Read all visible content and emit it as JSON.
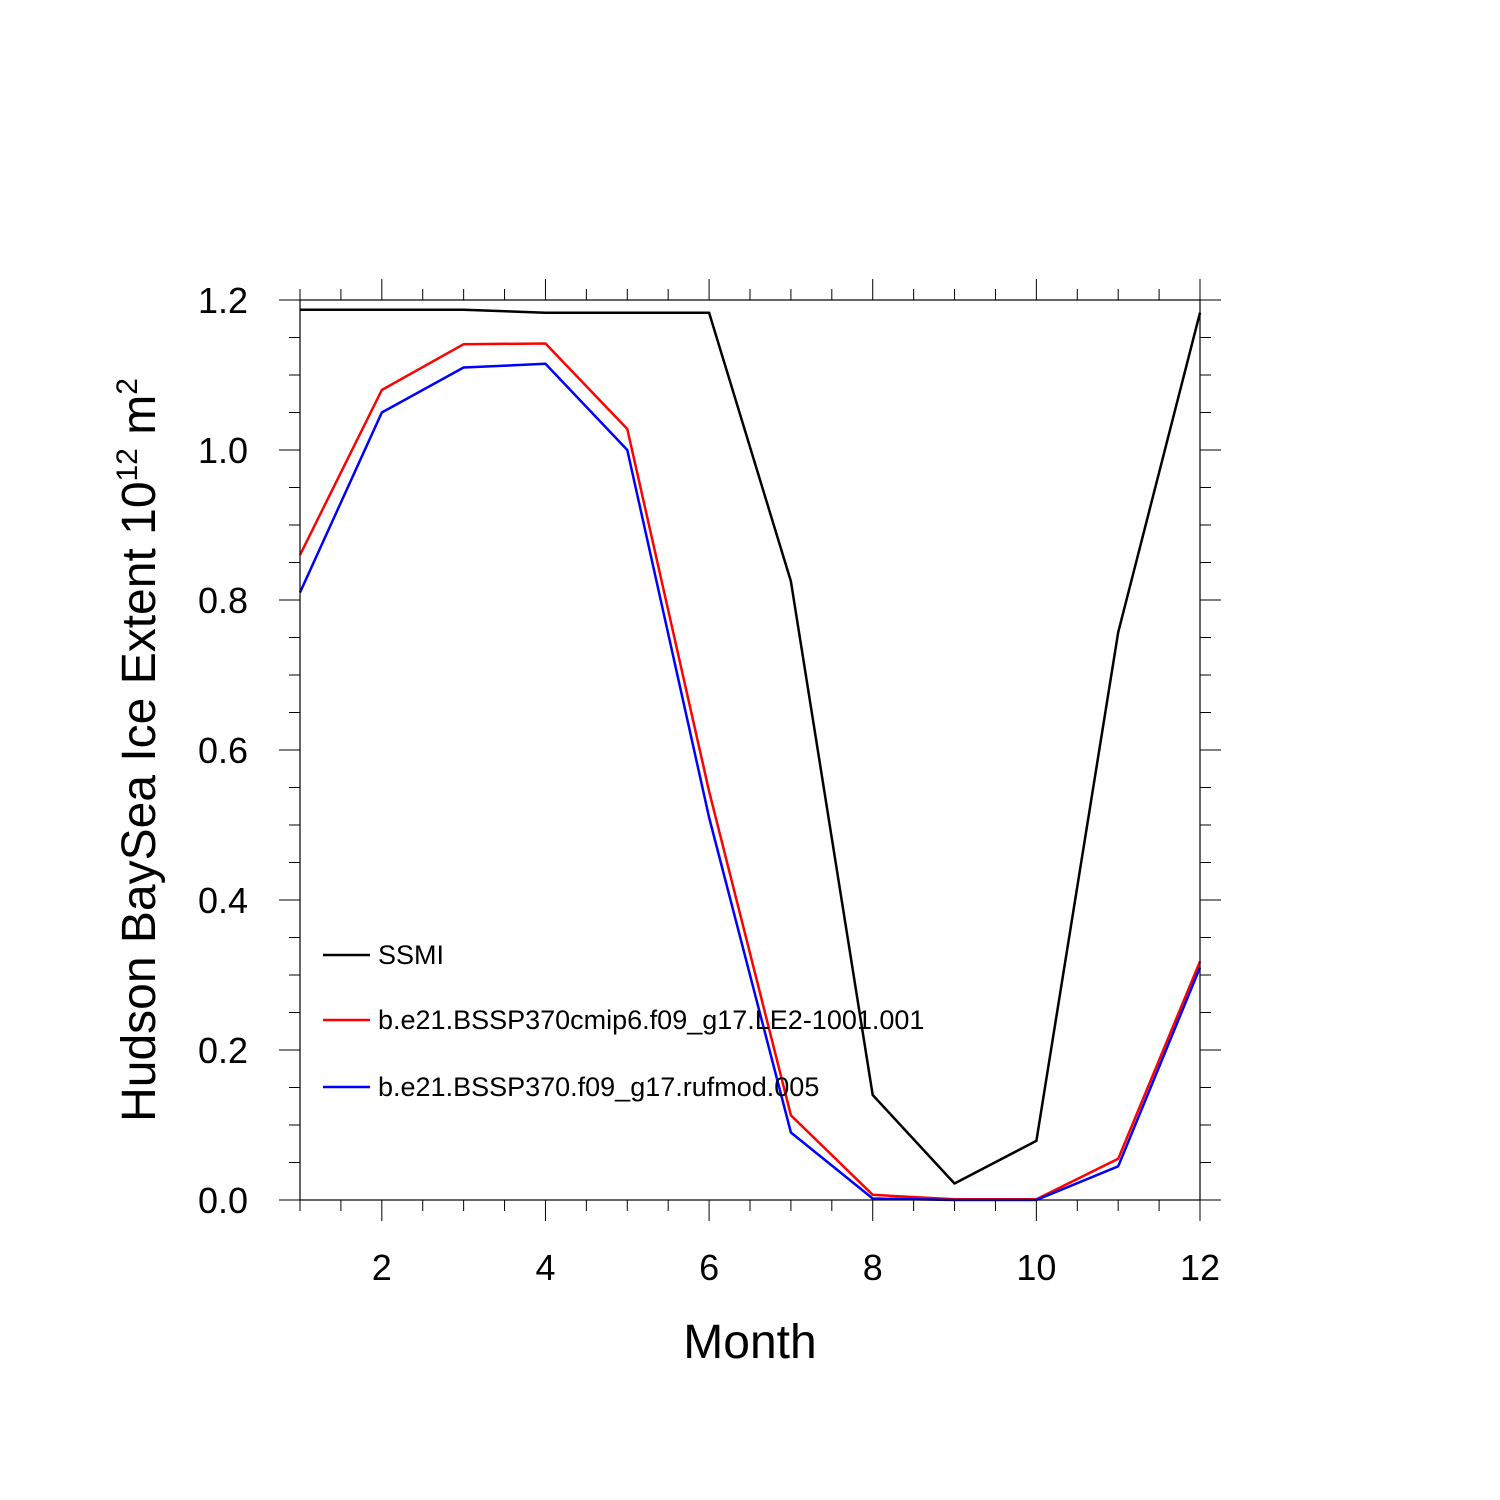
{
  "chart_data": {
    "type": "line",
    "xlabel": "Month",
    "ylabel_main": "Hudson BaySea Ice Extent 10",
    "ylabel_sup": "12",
    "ylabel_unit": " m",
    "ylabel_unit_sup": "2",
    "xlim": [
      1,
      12
    ],
    "ylim": [
      0,
      1.2
    ],
    "x_ticks": [
      2,
      4,
      6,
      8,
      10,
      12
    ],
    "y_ticks": [
      "0.0",
      "0.2",
      "0.4",
      "0.6",
      "0.8",
      "1.0",
      "1.2"
    ],
    "legend_position": "lower-left",
    "grid": false,
    "x": [
      1,
      2,
      3,
      4,
      5,
      6,
      7,
      8,
      9,
      10,
      11,
      12
    ],
    "series": [
      {
        "name": "SSMI",
        "color": "#000000",
        "values": [
          1.187,
          1.187,
          1.187,
          1.183,
          1.183,
          1.183,
          0.825,
          0.14,
          0.022,
          0.079,
          0.757,
          1.183
        ]
      },
      {
        "name": "b.e21.BSSP370cmip6.f09_g17.LE2-1001.001",
        "color": "#ff0000",
        "values": [
          0.86,
          1.08,
          1.141,
          1.142,
          1.028,
          0.545,
          0.113,
          0.007,
          0.001,
          0.001,
          0.055,
          0.318
        ]
      },
      {
        "name": "b.e21.BSSP370.f09_g17.rufmod.005",
        "color": "#0000ff",
        "values": [
          0.81,
          1.05,
          1.11,
          1.115,
          1.0,
          0.51,
          0.09,
          0.002,
          0.0,
          0.0,
          0.045,
          0.31
        ]
      }
    ]
  }
}
